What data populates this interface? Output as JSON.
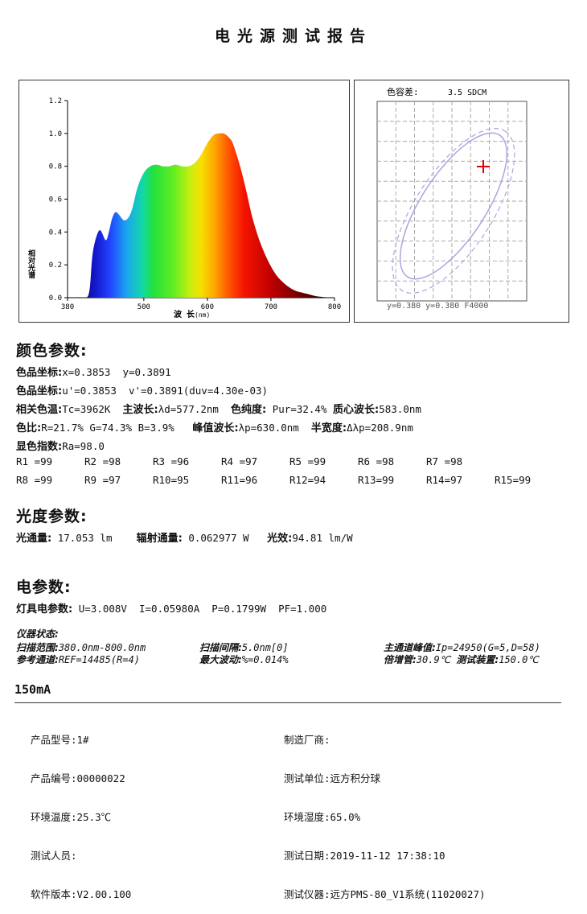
{
  "title": "电光源测试报告",
  "spectrum": {
    "ylabel": "相对光谱",
    "xlabel": "波 长",
    "xunit": "(nm)",
    "yticks": [
      "0.0",
      "0.2",
      "0.4",
      "0.6",
      "0.8",
      "1.0",
      "1.2"
    ],
    "xticks": [
      "380",
      "500",
      "600",
      "700",
      "800"
    ]
  },
  "chart_data": {
    "type": "area",
    "xlim": [
      380,
      800
    ],
    "ylim": [
      0,
      1.2
    ],
    "x": [
      380,
      390,
      400,
      410,
      415,
      420,
      430,
      440,
      445,
      450,
      455,
      460,
      470,
      480,
      490,
      500,
      510,
      520,
      530,
      540,
      550,
      560,
      570,
      580,
      590,
      600,
      610,
      620,
      625,
      630,
      635,
      640,
      650,
      660,
      670,
      680,
      690,
      700,
      710,
      720,
      730,
      740,
      750,
      760,
      770,
      780,
      790,
      800
    ],
    "values": [
      0,
      0,
      0,
      0,
      0.06,
      0.28,
      0.41,
      0.35,
      0.4,
      0.48,
      0.52,
      0.51,
      0.47,
      0.52,
      0.67,
      0.76,
      0.8,
      0.81,
      0.8,
      0.8,
      0.81,
      0.8,
      0.8,
      0.82,
      0.87,
      0.94,
      0.99,
      1.0,
      1.0,
      0.99,
      0.97,
      0.94,
      0.82,
      0.67,
      0.5,
      0.37,
      0.27,
      0.19,
      0.13,
      0.09,
      0.06,
      0.04,
      0.03,
      0.02,
      0.01,
      0.005,
      0.002,
      0
    ]
  },
  "color_tolerance": {
    "label": "色容差:",
    "value": "3.5 SDCM",
    "footer": "y=0.380 y=0.380 F4000"
  },
  "color_params": {
    "heading": "颜色参数:",
    "cie_xy_label": "色品坐标:",
    "cie_xy_value": "x=0.3853  y=0.3891",
    "cie_uv_label": "色品坐标:",
    "cie_uv_value": "u'=0.3853  v'=0.3891(duv=4.30e-03)",
    "cct_label": "相关色温:",
    "cct_value": "Tc=3962K",
    "dom_label": "主波长:",
    "dom_value": "λd=577.2nm",
    "purity_label": "色纯度:",
    "purity_value": "Pur=32.4%",
    "centroid_label": "质心波长:",
    "centroid_value": "583.0nm",
    "ratio_label": "色比:",
    "ratio_value": "R=21.7% G=74.3% B=3.9%",
    "peak_label": "峰值波长:",
    "peak_value": "λp=630.0nm",
    "hw_label": "半宽度:",
    "hw_value": "Δλp=208.9nm",
    "cri_label": "显色指数:",
    "cri_value": "Ra=98.0",
    "r_row1": [
      "R1 =99",
      "R2 =98",
      "R3 =96",
      "R4 =97",
      "R5 =99",
      "R6 =98",
      "R7 =98"
    ],
    "r_row2": [
      "R8 =99",
      "R9 =97",
      "R10=95",
      "R11=96",
      "R12=94",
      "R13=99",
      "R14=97",
      "R15=99"
    ]
  },
  "photo_params": {
    "heading": "光度参数:",
    "flux_label": "光通量:",
    "flux_value": "17.053 lm",
    "radiant_label": "辐射通量:",
    "radiant_value": "0.062977 W",
    "efficacy_label": "光效:",
    "efficacy_value": "94.81 lm/W"
  },
  "elec_params": {
    "heading": "电参数:",
    "label": "灯具电参数:",
    "value": "U=3.008V  I=0.05980A  P=0.1799W  PF=1.000"
  },
  "instrument": {
    "heading": "仪器状态:",
    "scan_range_label": "扫描范围:",
    "scan_range_value": "380.0nm-800.0nm",
    "scan_step_label": "扫描间隔:",
    "scan_step_value": "5.0nm[0]",
    "peak_label": "主通道峰值:",
    "peak_value": "Ip=24950(G=5,D=58)",
    "ref_label": "参考通道:",
    "ref_value": "REF=14485(R=4)",
    "fluct_label": "最大波动:",
    "fluct_value": "%=0.014%",
    "pmt_label": "倍增管:",
    "pmt_value": "30.9℃",
    "device_label": "测试装置:",
    "device_value": "150.0℃"
  },
  "current": "150mA",
  "footer": {
    "model": "产品型号:1#",
    "serial": "产品编号:00000022",
    "temp": "环境温度:25.3℃",
    "tester": "测试人员:",
    "software": "软件版本:V2.00.100",
    "maker": "制造厂商:",
    "unit": "测试单位:远方积分球",
    "humidity": "环境湿度:65.0%",
    "date": "测试日期:2019-11-12 17:38:10",
    "instrument": "测试仪器:远方PMS-80_V1系统(11020027)"
  }
}
